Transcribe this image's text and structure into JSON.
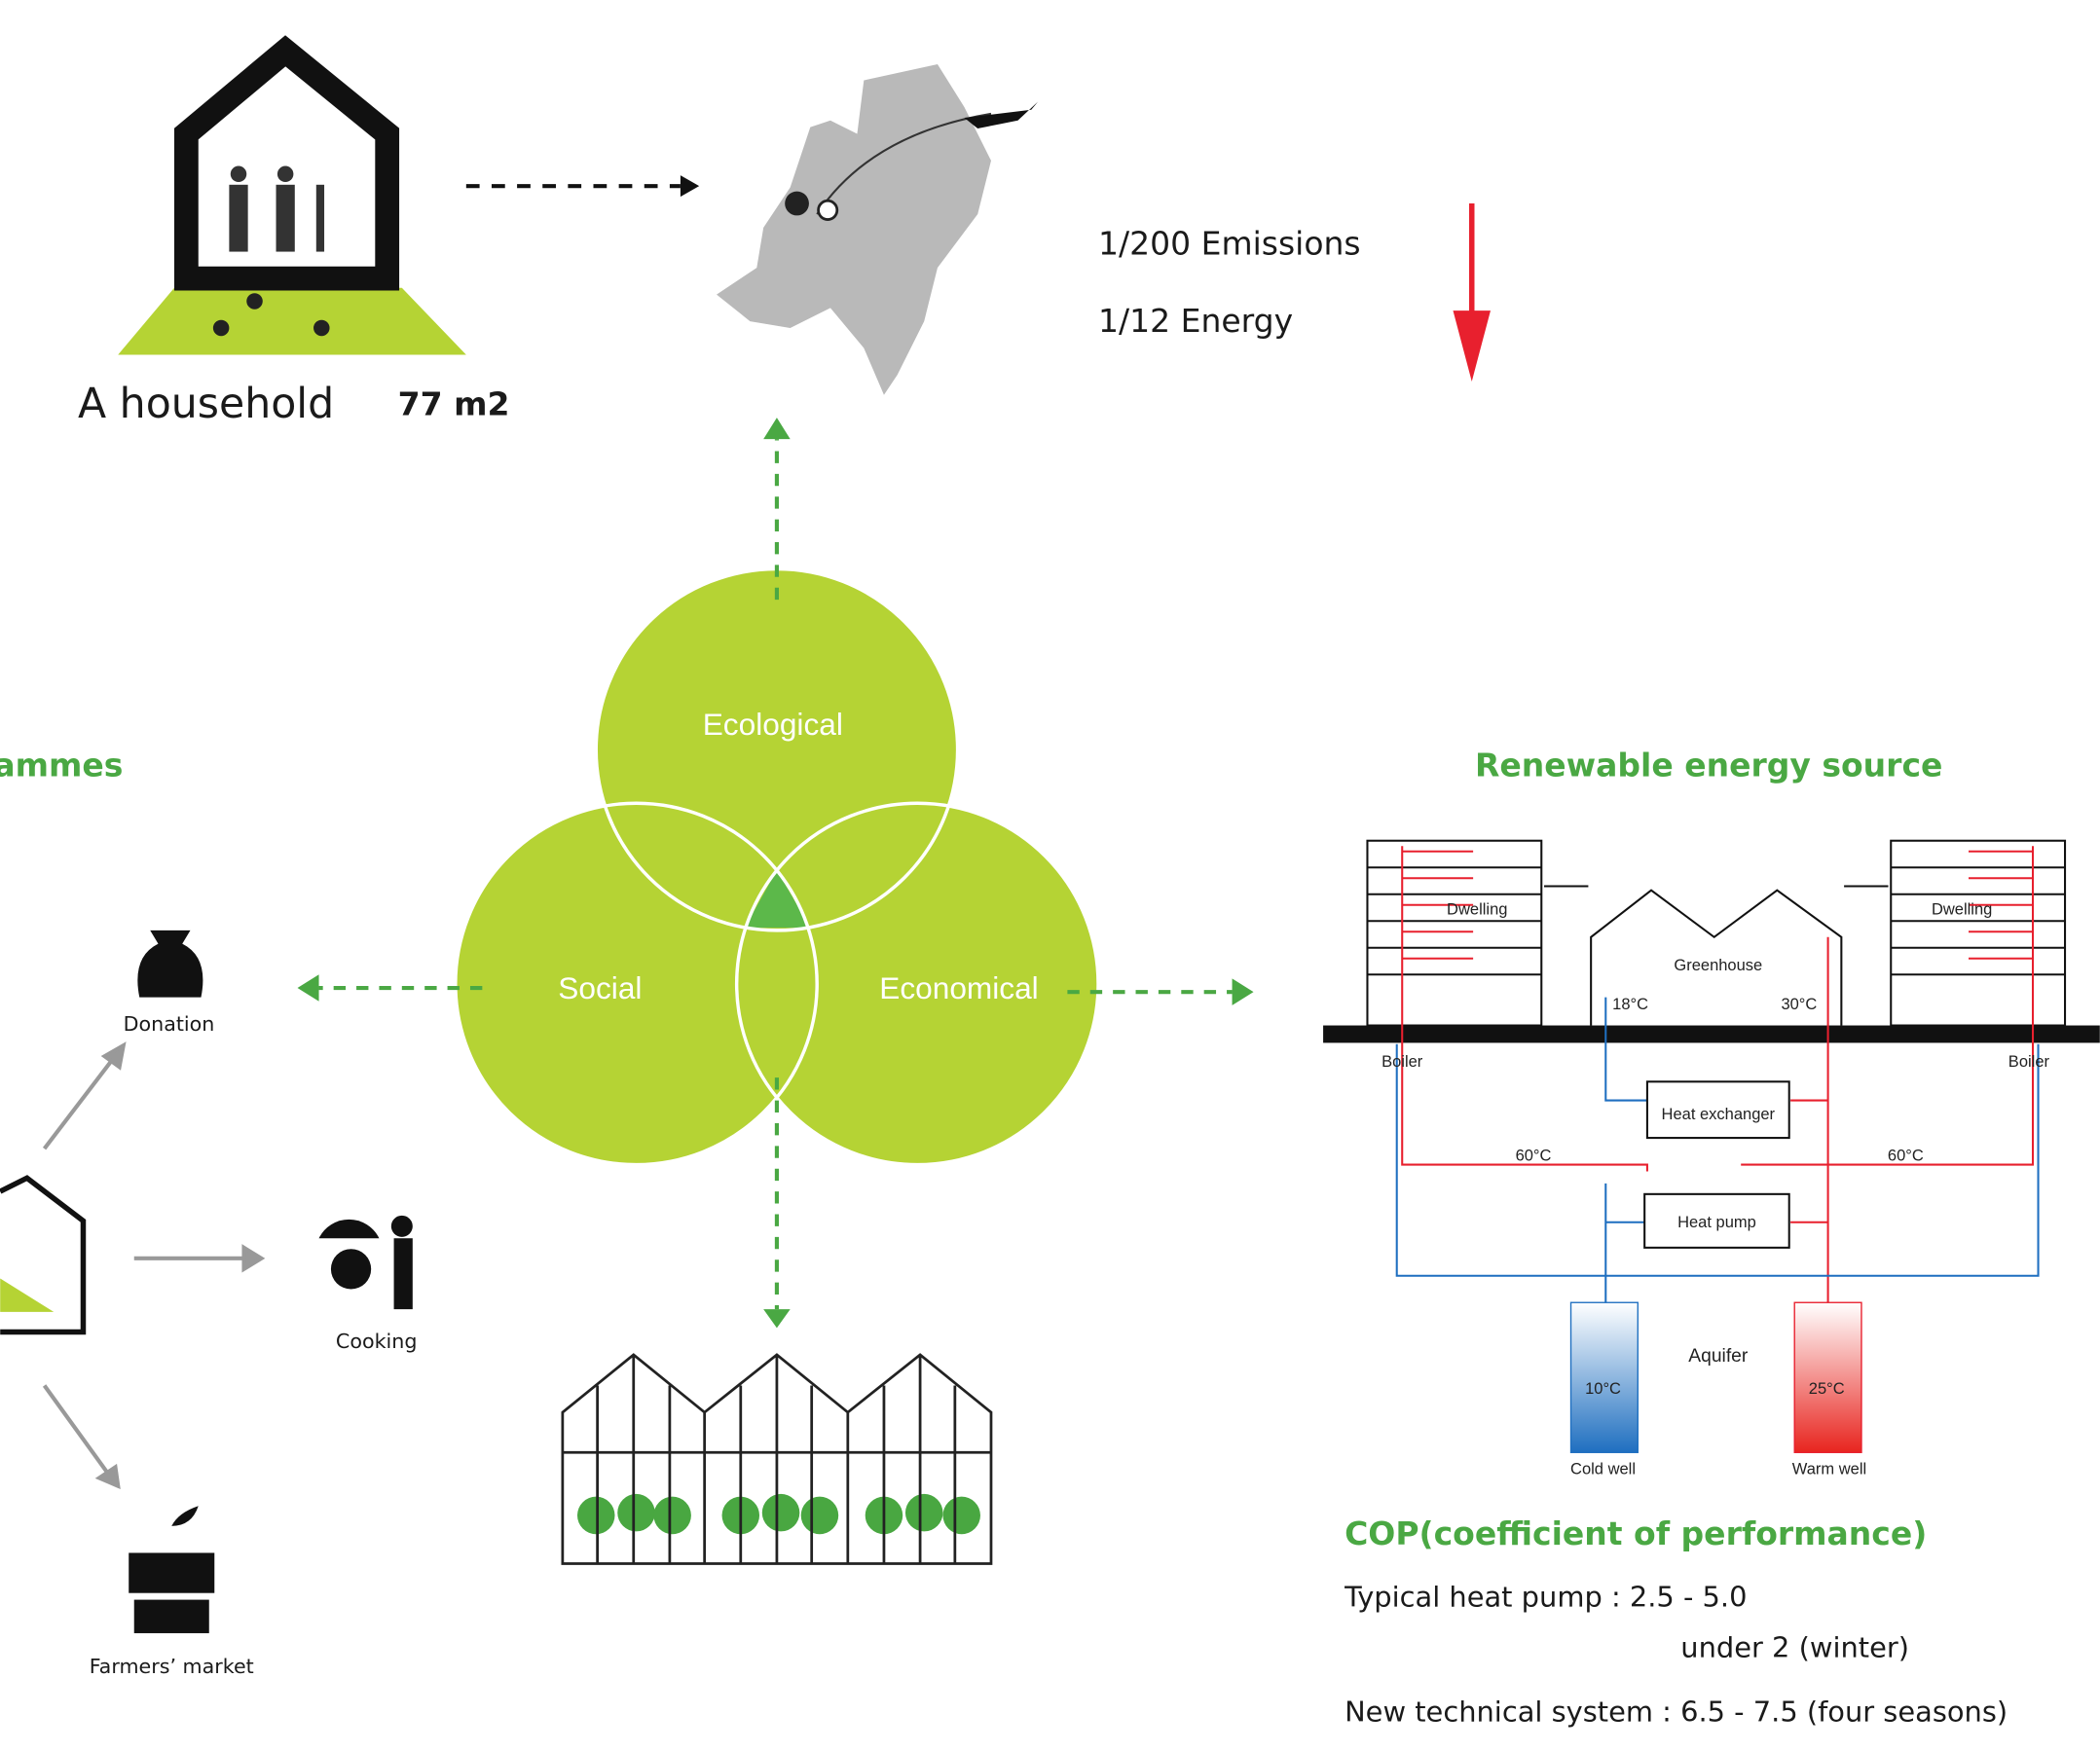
{
  "household": {
    "label": "A household",
    "area": "77 m2"
  },
  "impact": {
    "emissions": "1/200 Emissions",
    "energy": "1/12 Energy"
  },
  "left_heading": "ammes",
  "venn": {
    "top": "Ecological",
    "left": "Social",
    "right": "Economical"
  },
  "outputs": {
    "donation": "Donation",
    "cooking": "Cooking",
    "market": "Farmers’ market"
  },
  "energy": {
    "title": "Renewable energy source",
    "dwelling_left": "Dwelling",
    "dwelling_right": "Dwelling",
    "greenhouse": "Greenhouse",
    "t18": "18°C",
    "t30": "30°C",
    "boiler_left": "Boiler",
    "boiler_right": "Boiler",
    "exchanger": "Heat exchanger",
    "t60_left": "60°C",
    "t60_right": "60°C",
    "pump": "Heat pump",
    "aquifer": "Aquifer",
    "cold_temp": "10°C",
    "warm_temp": "25°C",
    "cold_well": "Cold well",
    "warm_well": "Warm well"
  },
  "cop": {
    "title": "COP(coefficient of performance)",
    "typical": "Typical heat pump : 2.5 - 5.0",
    "winter": "under 2 (winter)",
    "new": "New technical system : 6.5 - 7.5 (four seasons)"
  }
}
